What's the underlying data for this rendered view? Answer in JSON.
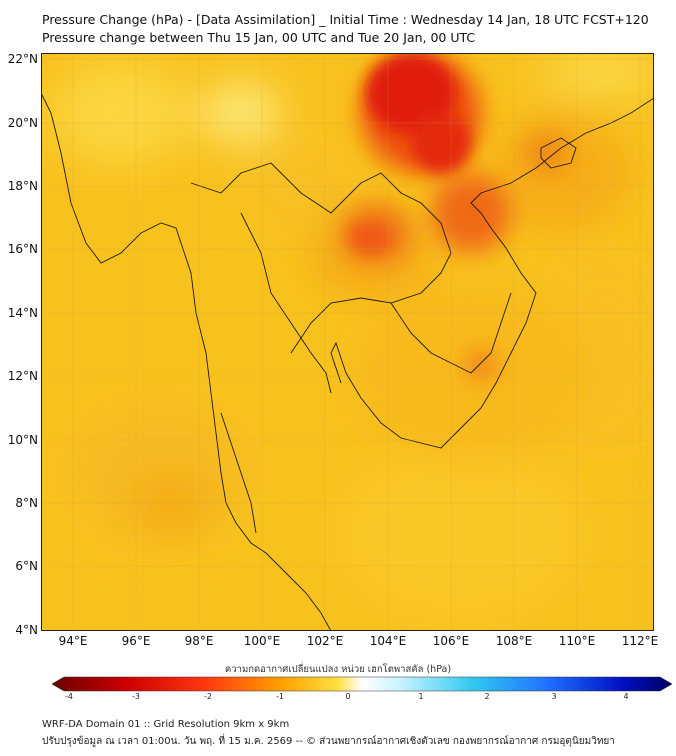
{
  "title_line1": "Pressure Change (hPa) - [Data Assimilation] _ Initial Time : Wednesday 14 Jan, 18 UTC FCST+120",
  "title_line2": "Pressure change between Thu 15 Jan, 00 UTC and Tue 20 Jan, 00 UTC",
  "lat_labels": [
    "22°N",
    "20°N",
    "18°N",
    "16°N",
    "14°N",
    "12°N",
    "10°N",
    "8°N",
    "6°N",
    "4°N"
  ],
  "lon_labels": [
    "94°E",
    "96°E",
    "98°E",
    "100°E",
    "102°E",
    "104°E",
    "106°E",
    "108°E",
    "110°E",
    "112°E"
  ],
  "colorbar_label": "ความกดอากาศเปลี่ยนแปลง หน่วย เฮกโตพาสคัล (hPa)",
  "colorbar_ticks": [
    "-4",
    "-3",
    "-2",
    "-1",
    "0",
    "1",
    "2",
    "3",
    "4"
  ],
  "footer_line1": "WRF-DA Domain 01 :: Grid Resolution 9km x 9km",
  "footer_line2": "ปรับปรุงข้อมูล ณ เวลา 01:00น. วัน พฤ. ที่ 15 ม.ค. 2569 -- © ส่วนพยากรณ์อากาศเชิงตัวเลข กองพยากรณ์อากาศ กรมอุตุนิยมวิทยา",
  "colors": {
    "background_field": "#f8c020",
    "strong_fall": "#e01010",
    "weak_change": "#fff8c0"
  }
}
